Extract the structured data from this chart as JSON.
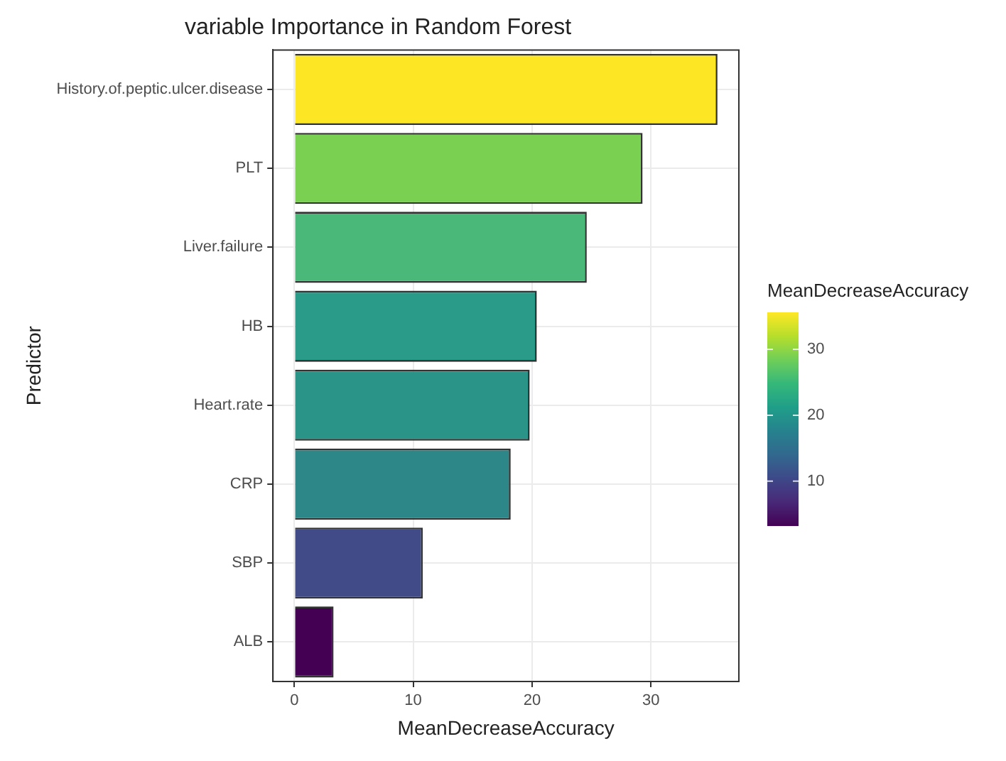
{
  "chart_data": {
    "type": "bar",
    "orientation": "horizontal",
    "title": "variable Importance in Random Forest",
    "xlabel": "MeanDecreaseAccuracy",
    "ylabel": "Predictor",
    "categories": [
      "History.of.peptic.ulcer.disease",
      "PLT",
      "Liver.failure",
      "HB",
      "Heart.rate",
      "CRP",
      "SBP",
      "ALB"
    ],
    "values": [
      35.6,
      29.3,
      24.6,
      20.4,
      19.8,
      18.2,
      10.8,
      3.3
    ],
    "colors": [
      "#fde725",
      "#7ad151",
      "#4ab878",
      "#2a9a89",
      "#2a9489",
      "#2d8788",
      "#414b87",
      "#440154"
    ],
    "xlim": [
      -1.8,
      37.4
    ],
    "xticks": [
      0,
      10,
      20,
      30
    ],
    "grid": true,
    "legend": false,
    "clabel": "MeanDecreaseAccuracy",
    "clim": [
      3.3,
      35.6
    ],
    "cticks": [
      10,
      20,
      30
    ]
  }
}
